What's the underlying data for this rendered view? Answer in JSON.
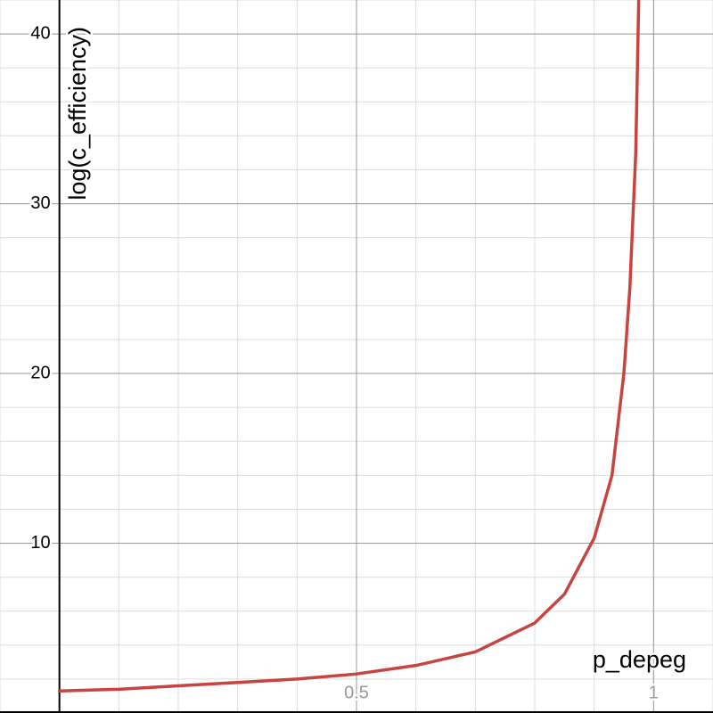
{
  "chart_data": {
    "type": "line",
    "x_label": "p_depeg",
    "y_label": "log(c_efficiency)",
    "xlim": [
      -0.1,
      1.1
    ],
    "ylim": [
      0,
      42
    ],
    "xticks": [
      0.5,
      1
    ],
    "yticks": [
      10,
      20,
      30,
      40
    ],
    "grid": true,
    "x": [
      0,
      0.1,
      0.2,
      0.3,
      0.4,
      0.5,
      0.6,
      0.7,
      0.8,
      0.85,
      0.9,
      0.93,
      0.95,
      0.96,
      0.97,
      0.975
    ],
    "series": [
      {
        "color": "#c74440",
        "values": [
          1.3,
          1.4,
          1.6,
          1.8,
          2.0,
          2.3,
          2.8,
          3.6,
          5.3,
          7.0,
          10.3,
          14,
          20,
          25,
          33,
          42
        ]
      }
    ]
  }
}
